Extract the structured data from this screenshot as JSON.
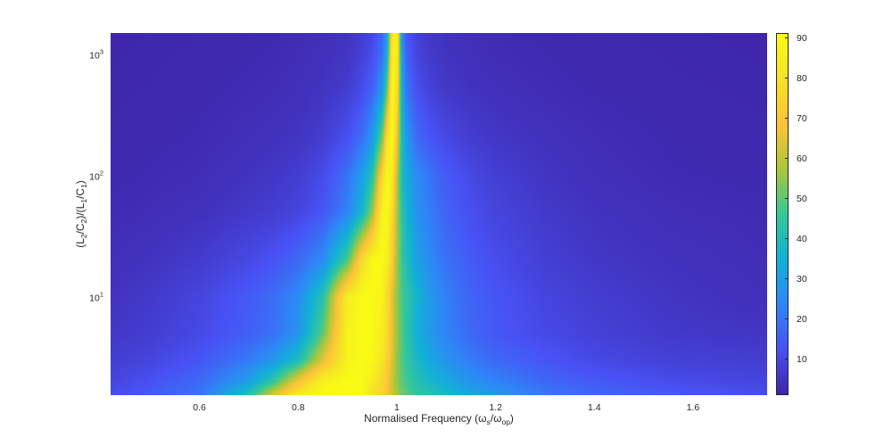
{
  "chart_data": {
    "type": "heatmap",
    "title": "",
    "xlabel": {
      "prefix": "Normalised Frequency (",
      "sym1": "ω",
      "sub1": "s",
      "slash": "/",
      "sym2": "ω",
      "sub2": "op",
      "suffix": ")"
    },
    "ylabel": {
      "p1": "(L",
      "s1": "2",
      "p2": "/C",
      "s2": "2",
      "p3": ")/(L",
      "s3": "1",
      "p4": "/C",
      "s4": "1",
      "p5": ")"
    },
    "xlim": [
      0.42,
      1.75
    ],
    "ylim": [
      1.55,
      1500
    ],
    "yscale": "log",
    "clim": [
      1,
      91.3
    ],
    "colormap": "parula",
    "colorbar": true,
    "grid": false,
    "x_ticks": [
      0.6,
      0.8,
      1,
      1.2,
      1.4,
      1.6
    ],
    "x_tick_labels": [
      "0.6",
      "0.8",
      "1",
      "1.2",
      "1.4",
      "1.6"
    ],
    "y_ticks": [
      10,
      100,
      1000
    ],
    "y_tick_labels": [
      {
        "base": "10",
        "exp": "1"
      },
      {
        "base": "10",
        "exp": "2"
      },
      {
        "base": "10",
        "exp": "3"
      }
    ],
    "colorbar_ticks": [
      10,
      20,
      30,
      40,
      50,
      60,
      70,
      80,
      90
    ],
    "colorbar_tick_labels": [
      "10",
      "20",
      "30",
      "40",
      "50",
      "60",
      "70",
      "80",
      "90"
    ],
    "x": [
      0.42,
      0.5,
      0.6,
      0.7,
      0.75,
      0.8,
      0.85,
      0.9,
      0.93,
      0.95,
      0.97,
      0.98,
      0.99,
      1.0,
      1.01,
      1.02,
      1.04,
      1.07,
      1.1,
      1.15,
      1.2,
      1.3,
      1.4,
      1.55,
      1.75
    ],
    "y": [
      1.55,
      2,
      3,
      5,
      10,
      20,
      50,
      100,
      200,
      500,
      1000,
      1500
    ],
    "z": [
      [
        11,
        14,
        20,
        42,
        65,
        85,
        91,
        91,
        90,
        80,
        75,
        70,
        62,
        58,
        52,
        50,
        45,
        42,
        38,
        32,
        28,
        21,
        17,
        14,
        11
      ],
      [
        9,
        12,
        17,
        30,
        45,
        68,
        88,
        91,
        91,
        85,
        76,
        70,
        62,
        55,
        50,
        47,
        42,
        37,
        33,
        27,
        23,
        17,
        14,
        11,
        9
      ],
      [
        7,
        9,
        13,
        21,
        28,
        40,
        65,
        88,
        91,
        90,
        82,
        74,
        64,
        55,
        49,
        45,
        38,
        32,
        27,
        21,
        17,
        13,
        10,
        8,
        7
      ],
      [
        5.5,
        7,
        10,
        15,
        19,
        27,
        50,
        88,
        91,
        91,
        85,
        78,
        66,
        56,
        49,
        43,
        35,
        28,
        23,
        17,
        13.5,
        10,
        8,
        6,
        5
      ],
      [
        4.5,
        6,
        9,
        14,
        18,
        25,
        42,
        85,
        91,
        91,
        88,
        78,
        65,
        55,
        48,
        44,
        36,
        28,
        22,
        16,
        13,
        9,
        7,
        5,
        3.5
      ],
      [
        3.5,
        4.5,
        6.5,
        10,
        12.5,
        17,
        25,
        48,
        78,
        90,
        91,
        86,
        72,
        57,
        46,
        40,
        31,
        24,
        19,
        14,
        11,
        7.5,
        5.5,
        4.2,
        3
      ],
      [
        2.5,
        3,
        4,
        6,
        7,
        9,
        13,
        23,
        37,
        55,
        88,
        91,
        78,
        58,
        44,
        36,
        27,
        21,
        16,
        11.5,
        9,
        6,
        4.5,
        3.2,
        2.5
      ],
      [
        2,
        2.5,
        3,
        4.5,
        5.5,
        7,
        10.5,
        19,
        30,
        42,
        75,
        91,
        85,
        60,
        40,
        33,
        25,
        19,
        14,
        10,
        7.5,
        5,
        3.5,
        2.5,
        2
      ],
      [
        1.8,
        2,
        2.5,
        3.5,
        4,
        5,
        7,
        12,
        19,
        28,
        52,
        80,
        91,
        70,
        40,
        28,
        18,
        13,
        10,
        7,
        5.5,
        4,
        3,
        2.2,
        1.8
      ],
      [
        1.5,
        1.7,
        2,
        2.6,
        3,
        3.6,
        4.8,
        7,
        11,
        16,
        28,
        50,
        91,
        80,
        35,
        20,
        12,
        8,
        6,
        4.5,
        3.6,
        2.8,
        2.2,
        1.8,
        1.5
      ],
      [
        1.3,
        1.5,
        1.8,
        2.2,
        2.5,
        3,
        3.8,
        5,
        8,
        11,
        19,
        33,
        85,
        88,
        30,
        15,
        9,
        6,
        4.6,
        3.5,
        2.9,
        2.3,
        1.9,
        1.6,
        1.3
      ],
      [
        1.2,
        1.4,
        1.6,
        2,
        2.3,
        2.7,
        3.3,
        4.4,
        7,
        9.5,
        16,
        28,
        82,
        90,
        26,
        13,
        8,
        5.4,
        4.2,
        3.2,
        2.6,
        2.1,
        1.8,
        1.5,
        1.2
      ]
    ]
  }
}
